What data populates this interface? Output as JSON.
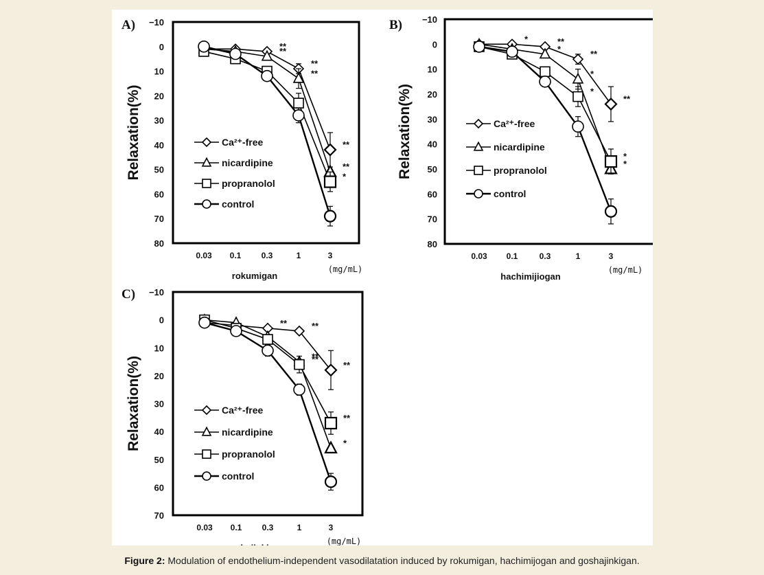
{
  "caption": {
    "label": "Figure 2:",
    "text": "Modulation of endothelium-independent vasodilatation induced by rokumigan, hachimijogan and goshajinkigan."
  },
  "chart_data": [
    {
      "type": "line",
      "panel": "A)",
      "xlabel": "rokumigan",
      "unit": "(mg/mL)",
      "ylabel": "Relaxation(%)",
      "categories": [
        "0.03",
        "0.1",
        "0.3",
        "1",
        "3"
      ],
      "ylim": [
        -10,
        80
      ],
      "y_inverted": true,
      "y_ticks": [
        "−10",
        "0",
        "10",
        "20",
        "30",
        "40",
        "50",
        "60",
        "70",
        "80"
      ],
      "legend": [
        "Ca²⁺-free",
        "nicardipine",
        "propranolol",
        "control"
      ],
      "series": [
        {
          "name": "Ca²⁺-free",
          "marker": "diamond",
          "values": [
            1,
            1,
            2,
            9,
            42
          ],
          "err": [
            0,
            0,
            0,
            2,
            7
          ],
          "sig": [
            "",
            "",
            "**",
            "**",
            "**"
          ]
        },
        {
          "name": "nicardipine",
          "marker": "triangle",
          "values": [
            1,
            2,
            4,
            13,
            51
          ],
          "err": [
            0,
            0,
            0,
            4,
            0
          ],
          "sig": [
            "",
            "",
            "**",
            "**",
            "**"
          ]
        },
        {
          "name": "propranolol",
          "marker": "square",
          "values": [
            2,
            5,
            10,
            23,
            55
          ],
          "err": [
            0,
            0,
            0,
            4,
            4
          ],
          "sig": [
            "",
            "",
            "",
            "",
            "*"
          ]
        },
        {
          "name": "control",
          "marker": "circle",
          "values": [
            0,
            3,
            12,
            28,
            69
          ],
          "err": [
            0,
            0,
            2,
            3,
            4
          ],
          "sig": [
            "",
            "",
            "",
            "",
            ""
          ]
        }
      ]
    },
    {
      "type": "line",
      "panel": "B)",
      "xlabel": "hachimijiogan",
      "unit": "(mg/mL)",
      "ylabel": "Relaxation(%)",
      "categories": [
        "0.03",
        "0.1",
        "0.3",
        "1",
        "3"
      ],
      "ylim": [
        -10,
        80
      ],
      "y_inverted": true,
      "y_ticks": [
        "−10",
        "0",
        "10",
        "20",
        "30",
        "40",
        "50",
        "60",
        "70",
        "80"
      ],
      "legend": [
        "Ca²⁺-free",
        "nicardipine",
        "propranolol",
        "control"
      ],
      "series": [
        {
          "name": "Ca²⁺-free",
          "marker": "diamond",
          "values": [
            0,
            0,
            1,
            6,
            24
          ],
          "err": [
            0,
            0,
            0,
            2,
            7
          ],
          "sig": [
            "",
            "*",
            "**",
            "**",
            "**"
          ]
        },
        {
          "name": "nicardipine",
          "marker": "triangle",
          "values": [
            0,
            2,
            4,
            14,
            50
          ],
          "err": [
            0,
            0,
            0,
            4,
            0
          ],
          "sig": [
            "",
            "",
            "*",
            "*",
            "*"
          ]
        },
        {
          "name": "propranolol",
          "marker": "square",
          "values": [
            1,
            4,
            11,
            21,
            47
          ],
          "err": [
            0,
            0,
            0,
            4,
            5
          ],
          "sig": [
            "",
            "",
            "",
            "*",
            "*"
          ]
        },
        {
          "name": "control",
          "marker": "circle",
          "values": [
            1,
            3,
            15,
            33,
            67
          ],
          "err": [
            0,
            0,
            2,
            4,
            5
          ],
          "sig": [
            "",
            "",
            "",
            "",
            ""
          ]
        }
      ]
    },
    {
      "type": "line",
      "panel": "C)",
      "xlabel": "goshajinkigan",
      "unit": "(mg/mL)",
      "ylabel": "Relaxation(%)",
      "categories": [
        "0.03",
        "0.1",
        "0.3",
        "1",
        "3"
      ],
      "ylim": [
        -10,
        70
      ],
      "y_inverted": true,
      "y_ticks": [
        "−10",
        "0",
        "10",
        "20",
        "30",
        "40",
        "50",
        "60",
        "70"
      ],
      "legend": [
        "Ca²⁺-free",
        "nicardipine",
        "propranolol",
        "control"
      ],
      "series": [
        {
          "name": "Ca²⁺-free",
          "marker": "diamond",
          "values": [
            1,
            2,
            3,
            4,
            18
          ],
          "err": [
            0,
            0,
            0,
            0,
            7
          ],
          "sig": [
            "",
            "",
            "**",
            "**",
            "**"
          ]
        },
        {
          "name": "nicardipine",
          "marker": "triangle",
          "values": [
            0,
            1,
            6,
            15,
            46
          ],
          "err": [
            0,
            0,
            0,
            0,
            0
          ],
          "sig": [
            "",
            "",
            "",
            "**",
            "*"
          ]
        },
        {
          "name": "propranolol",
          "marker": "square",
          "values": [
            0,
            3,
            7,
            16,
            37
          ],
          "err": [
            0,
            0,
            0,
            3,
            4
          ],
          "sig": [
            "",
            "",
            "",
            "**",
            "**"
          ]
        },
        {
          "name": "control",
          "marker": "circle",
          "values": [
            1,
            4,
            11,
            25,
            58
          ],
          "err": [
            0,
            0,
            2,
            2,
            3
          ],
          "sig": [
            "",
            "",
            "",
            "",
            ""
          ]
        }
      ]
    }
  ]
}
